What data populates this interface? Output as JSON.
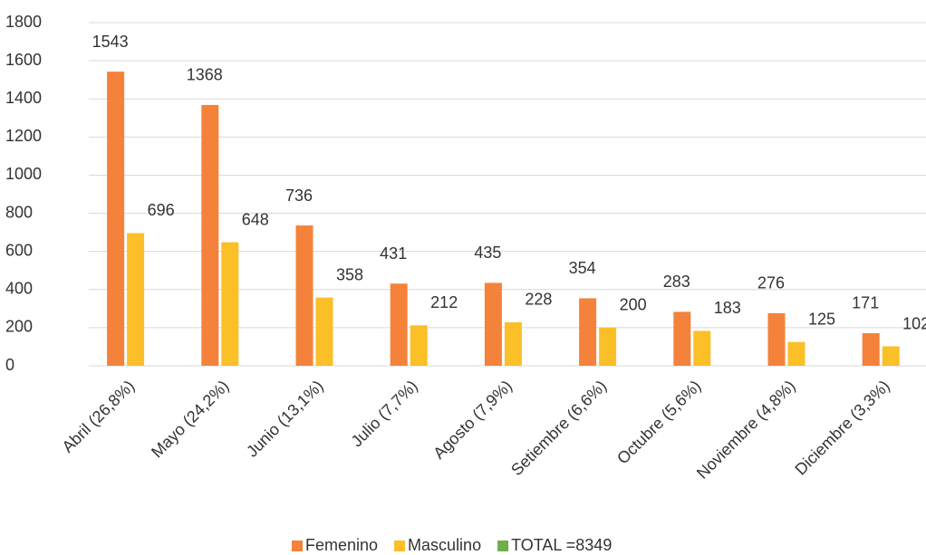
{
  "chart_data": {
    "type": "bar",
    "categories": [
      "Abril (26,8%)",
      "Mayo (24,2%)",
      "Junio (13,1%)",
      "Julio (7,7%)",
      "Agosto (7,9%)",
      "Setiembre (6,6%)",
      "Octubre (5,6%)",
      "Noviembre (4,8%)",
      "Diciembre (3,3%)"
    ],
    "series": [
      {
        "name": "Femenino",
        "color": "#f4823a",
        "values": [
          1543,
          1368,
          736,
          431,
          435,
          354,
          283,
          276,
          171
        ]
      },
      {
        "name": "Masculino",
        "color": "#fbbf28",
        "values": [
          696,
          648,
          358,
          212,
          228,
          200,
          183,
          125,
          102
        ]
      },
      {
        "name": "TOTAL =8349",
        "color": "#70ad47",
        "values": [
          null,
          null,
          null,
          null,
          null,
          null,
          null,
          null,
          null
        ]
      }
    ],
    "ylim": [
      0,
      1800
    ],
    "yticks": [
      0,
      200,
      400,
      600,
      800,
      1000,
      1200,
      1400,
      1600,
      1800
    ],
    "grid": true
  }
}
